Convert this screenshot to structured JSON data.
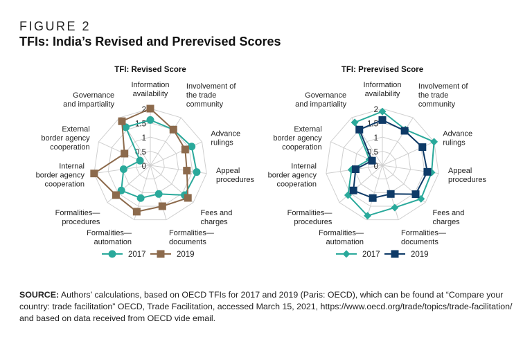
{
  "figure_label": "FIGURE 2",
  "figure_title": "TFIs: India’s Revised and Prerevised Scores",
  "source_label": "SOURCE:",
  "source_text": " Authors’ calculations, based on OECD TFIs for 2017 and 2019 (Paris: OECD), which can be found at “Compare your country: trade facilitation” OECD, Trade Facilitation, accessed March 15, 2021, https://www.oecd.org/trade/topics/trade-facilitation/ and based on data received from OECD vide email.",
  "colors": {
    "teal": "#2aa99b",
    "brown": "#8c6a4c",
    "navy": "#0e3a67",
    "grid": "#cfcfcf"
  },
  "chart_data": [
    {
      "type": "radar",
      "title": "TFI: Revised Score",
      "axes": [
        "Information availability",
        "Involvement of the trade community",
        "Advance rulings",
        "Appeal procedures",
        "Fees and charges",
        "Formalities—documents",
        "Formalities—automation",
        "Formalities—procedures",
        "Internal border agency cooperation",
        "External border agency cooperation",
        "Governance and impartiality"
      ],
      "axis_label_lines": [
        [
          "Information",
          "availability"
        ],
        [
          "Involvement of",
          "the trade",
          "community"
        ],
        [
          "Advance",
          "rulings"
        ],
        [
          "Appeal",
          "procedures"
        ],
        [
          "Fees and",
          "charges"
        ],
        [
          "Formalities—",
          "documents"
        ],
        [
          "Formalities—",
          "automation"
        ],
        [
          "Formalities—",
          "procedures"
        ],
        [
          "Internal",
          "border agency",
          "cooperation"
        ],
        [
          "External",
          "border agency",
          "cooperation"
        ],
        [
          "Governance",
          "and impartiality"
        ]
      ],
      "ticks": [
        "0",
        "0.5",
        "1",
        "1.5",
        "2"
      ],
      "rlim": [
        0,
        2
      ],
      "grid": true,
      "legend": "bottom",
      "series": [
        {
          "name": "2017",
          "marker": "circle",
          "color": "#2aa99b",
          "values": [
            1.6,
            1.5,
            1.6,
            1.65,
            1.6,
            1.05,
            1.2,
            1.35,
            0.95,
            0.4,
            1.6
          ]
        },
        {
          "name": "2019",
          "marker": "square",
          "color": "#8c6a4c",
          "values": [
            2.0,
            1.5,
            1.35,
            1.3,
            1.75,
            1.5,
            1.7,
            1.6,
            2.0,
            1.0,
            1.85
          ]
        }
      ]
    },
    {
      "type": "radar",
      "title": "TFI: Prerevised Score",
      "axes": [
        "Information availability",
        "Involvement of the trade community",
        "Advance rulings",
        "Appeal procedures",
        "Fees and charges",
        "Formalities—documents",
        "Formalities—automation",
        "Formalities—procedures",
        "Internal border agency cooperation",
        "External border agency cooperation",
        "Governance and impartiality"
      ],
      "axis_label_lines": [
        [
          "Information",
          "availability"
        ],
        [
          "Involvement of",
          "the trade",
          "community"
        ],
        [
          "Advance",
          "rulings"
        ],
        [
          "Appeal",
          "procedures"
        ],
        [
          "Fees and",
          "charges"
        ],
        [
          "Formalities—",
          "documents"
        ],
        [
          "Formalities—",
          "automation"
        ],
        [
          "Formalities—",
          "procedures"
        ],
        [
          "Internal",
          "border agency",
          "cooperation"
        ],
        [
          "External",
          "border agency",
          "cooperation"
        ],
        [
          "Governance",
          "and impartiality"
        ]
      ],
      "ticks": [
        "0",
        "0.5",
        "1",
        "1.5",
        "2"
      ],
      "rlim": [
        0,
        2
      ],
      "grid": true,
      "legend": "bottom",
      "series": [
        {
          "name": "2017",
          "marker": "diamond",
          "color": "#2aa99b",
          "values": [
            1.9,
            1.5,
            2.0,
            1.75,
            1.8,
            1.55,
            1.85,
            1.6,
            1.1,
            0.5,
            1.8
          ]
        },
        {
          "name": "2019",
          "marker": "square",
          "color": "#0e3a67",
          "values": [
            1.6,
            1.45,
            1.55,
            1.6,
            1.55,
            1.05,
            1.2,
            1.35,
            0.95,
            0.4,
            1.5
          ]
        }
      ]
    }
  ]
}
